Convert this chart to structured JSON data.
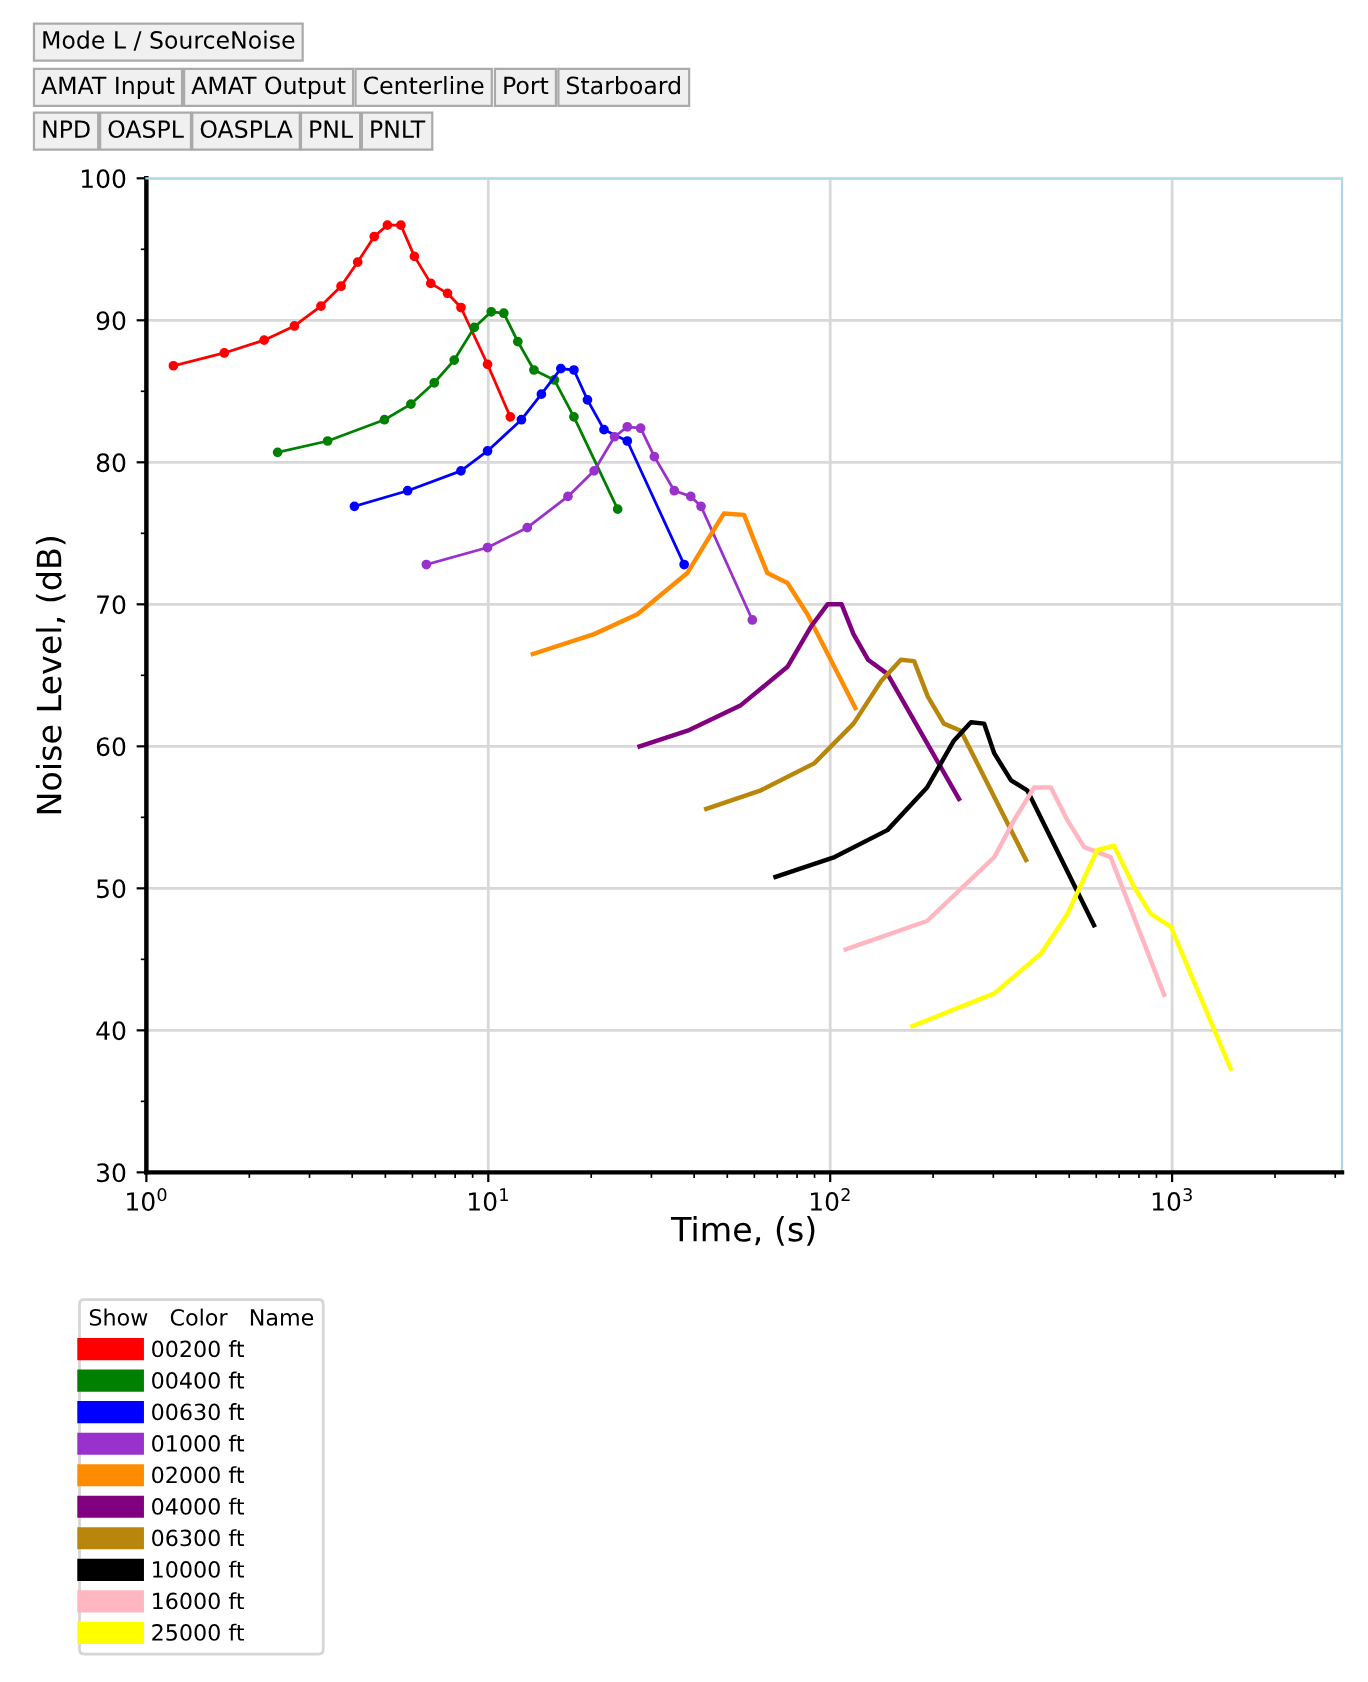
{
  "chart_data": {
    "type": "line",
    "xlabel": "Time, (s)",
    "ylabel": "Noise Level, (dB)",
    "log": "x",
    "grid": true,
    "legend": "bottom",
    "legend_title": "Show   Color   Name",
    "annotations": [
      "Mode L / SourceNoise",
      "AMAT Input",
      "AMAT Output",
      "Centerline",
      "Port",
      "Starboard",
      "NPD",
      "OASPL",
      "OASPLA",
      "PNL",
      "PNLT"
    ],
    "xlim": [
      1,
      3140
    ],
    "ylim": [
      30,
      100
    ],
    "xticks": [
      {
        "value": 1,
        "label": "10$^{0}$"
      },
      {
        "value": 10,
        "label": "10$^{1}$"
      },
      {
        "value": 100,
        "label": "10$^{2}$"
      },
      {
        "value": 1000,
        "label": "10$^{3}$"
      }
    ],
    "yticks": [
      30,
      40,
      50,
      60,
      70,
      80,
      90,
      100
    ],
    "series": [
      {
        "name": "00200 ft",
        "color": "#ff0000",
        "marker": "circle",
        "x": [
          1.2,
          1.69,
          2.21,
          2.71,
          3.24,
          3.71,
          4.15,
          4.64,
          5.07,
          5.55,
          6.08,
          6.79,
          7.6,
          8.32,
          9.95,
          11.6
        ],
        "values": [
          86.8,
          87.7,
          88.6,
          89.6,
          91.0,
          92.4,
          94.1,
          95.9,
          96.7,
          96.7,
          94.5,
          92.6,
          91.9,
          90.9,
          86.9,
          83.2
        ]
      },
      {
        "name": "00400 ft",
        "color": "#008000",
        "marker": "circle",
        "x": [
          2.42,
          3.39,
          4.97,
          5.94,
          6.95,
          7.95,
          9.1,
          10.2,
          11.1,
          12.2,
          13.6,
          15.6,
          17.8,
          23.9
        ],
        "values": [
          80.7,
          81.5,
          83.0,
          84.1,
          85.6,
          87.2,
          89.5,
          90.6,
          90.5,
          88.5,
          86.5,
          85.8,
          83.2,
          76.7
        ]
      },
      {
        "name": "00630 ft",
        "color": "#0000ff",
        "marker": "circle",
        "x": [
          4.06,
          5.81,
          8.32,
          9.95,
          12.5,
          14.3,
          16.3,
          17.8,
          19.5,
          21.8,
          25.5,
          37.4
        ],
        "values": [
          76.9,
          78.0,
          79.4,
          80.8,
          83.0,
          84.8,
          86.6,
          86.5,
          84.4,
          82.3,
          81.5,
          72.8
        ]
      },
      {
        "name": "01000 ft",
        "color": "#9932cc",
        "marker": "circle",
        "x": [
          6.59,
          9.95,
          13.0,
          17.1,
          20.4,
          23.4,
          25.5,
          27.9,
          30.6,
          35.0,
          39.1,
          41.9,
          59.2
        ],
        "values": [
          72.8,
          74.0,
          75.4,
          77.6,
          79.4,
          81.8,
          82.5,
          82.4,
          80.4,
          78.0,
          77.6,
          76.9,
          68.9
        ]
      },
      {
        "name": "02000 ft",
        "color": "#ff8c00",
        "x": [
          13.5,
          20.4,
          27.3,
          38.2,
          43.7,
          48.9,
          56.0,
          59.9,
          65.5,
          75.0,
          85.8,
          118.5
        ],
        "values": [
          66.5,
          67.9,
          69.3,
          72.2,
          74.5,
          76.4,
          76.3,
          74.5,
          72.2,
          71.5,
          69.3,
          62.7
        ]
      },
      {
        "name": "04000 ft",
        "color": "#800080",
        "x": [
          27.7,
          38.3,
          54.8,
          75.0,
          87.7,
          98.2,
          108,
          117,
          129,
          147,
          238
        ],
        "values": [
          60.0,
          61.1,
          62.9,
          65.6,
          68.4,
          70.0,
          70.0,
          67.9,
          66.1,
          65.1,
          56.3
        ]
      },
      {
        "name": "06300 ft",
        "color": "#b8860b",
        "x": [
          43.4,
          62.7,
          89.8,
          117,
          141,
          161,
          176,
          193,
          215,
          241,
          374
        ],
        "values": [
          55.6,
          56.9,
          58.8,
          61.6,
          64.6,
          66.1,
          66.0,
          63.5,
          61.6,
          61.1,
          52.0
        ]
      },
      {
        "name": "10000 ft",
        "color": "#000000",
        "x": [
          69.2,
          103,
          147,
          192,
          230,
          258,
          282,
          302,
          338,
          377,
          591
        ],
        "values": [
          50.8,
          52.2,
          54.1,
          57.1,
          60.4,
          61.7,
          61.6,
          59.5,
          57.6,
          56.9,
          47.4
        ]
      },
      {
        "name": "16000 ft",
        "color": "#ffb6c1",
        "x": [
          111,
          192,
          302,
          345,
          395,
          442,
          494,
          553,
          661,
          948
        ],
        "values": [
          45.7,
          47.7,
          52.2,
          54.8,
          57.1,
          57.1,
          54.8,
          52.9,
          52.2,
          42.5
        ]
      },
      {
        "name": "25000 ft",
        "color": "#ffff00",
        "x": [
          174,
          302,
          413,
          494,
          604,
          676,
          774,
          866,
          991,
          1483
        ],
        "values": [
          40.3,
          42.6,
          45.4,
          48.2,
          52.7,
          53.0,
          50.1,
          48.2,
          47.3,
          37.3
        ]
      }
    ]
  }
}
